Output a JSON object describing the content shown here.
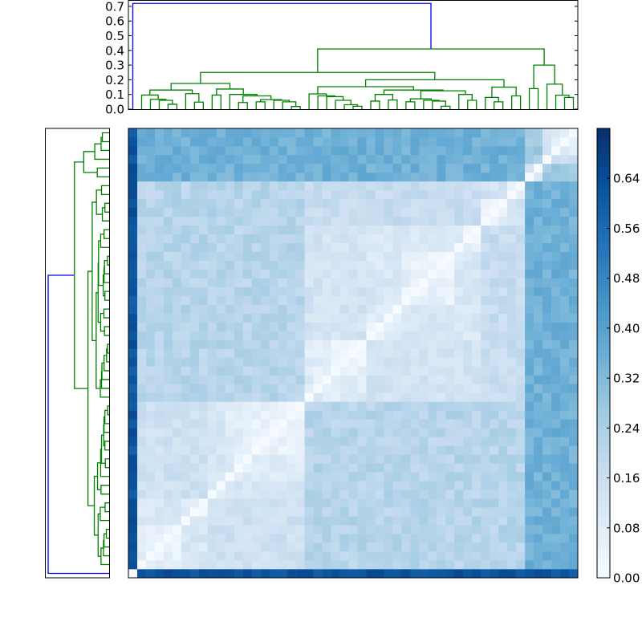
{
  "chart_data": {
    "type": "heatmap",
    "title": "",
    "layout": "clustered heatmap with column dendrogram on top, row dendrogram on left, colorbar on right",
    "n_leaves": 51,
    "leaf_order": "left-to-right for columns, bottom-to-top for rows",
    "linkage_tree": [
      0,
      [
        [
          [
            [
              [
                1,
                [
                  2,
                  [
                    3,
                    [
                      4,
                      5,
                      0.033
                    ],
                    0.06
                  ],
                  0.067
                ],
                0.096
              ],
              [
                6,
                [
                  7,
                  8,
                  0.048
                ],
                0.105
              ],
              0.13
            ],
            [
              [
                9,
                10,
                0.096
              ],
              [
                11,
                [
                  [
                    12,
                    13,
                    0.045
                  ],
                  [
                    [
                      14,
                      15,
                      0.05
                    ],
                    [
                      16,
                      [
                        17,
                        [
                          18,
                          19,
                          0.018
                        ],
                        0.05
                      ],
                      0.06
                    ],
                    0.065
                  ],
                  0.09
                ],
                0.1
              ],
              0.137
            ],
            0.175
          ],
          [
            [
              [
                20,
                [
                  21,
                  [
                    22,
                    [
                      23,
                      [
                        24,
                        [
                          25,
                          26,
                          0.02
                        ],
                        0.03
                      ],
                      0.06
                    ],
                    0.085
                  ],
                  0.09
                ],
                0.104
              ],
              [
                [
                  [
                    27,
                    28,
                    0.055
                  ],
                  [
                    29,
                    30,
                    0.062
                  ],
                  0.1
                ],
                [
                  [
                    [
                      31,
                      32,
                      0.05
                    ],
                    [
                      33,
                      [
                        34,
                        [
                          35,
                          36,
                          0.02
                        ],
                        0.055
                      ],
                      0.06
                    ],
                    0.07
                  ],
                  [
                    37,
                    [
                      38,
                      39,
                      0.06
                    ],
                    0.1
                  ],
                  0.125
                ],
                0.13
              ],
              0.153
            ],
            [
              [
                40,
                [
                  41,
                  42,
                  0.05
                ],
                0.08
              ],
              [
                43,
                44,
                0.09
              ],
              0.15
            ],
            0.2
          ],
          0.25
        ],
        [
          [
            45,
            46,
            0.14
          ],
          [
            47,
            [
              48,
              [
                49,
                50,
                0.08
              ],
              0.095
            ],
            0.17
          ],
          0.3
        ],
        0.41
      ],
      0.72
    ],
    "dendrogram_colors": {
      "root_link": "#0000ff",
      "cluster_links": "#008000"
    },
    "top_dendrogram_axis": {
      "ylim": [
        0,
        0.74
      ],
      "ticks": [
        "0.0",
        "0.1",
        "0.2",
        "0.3",
        "0.4",
        "0.5",
        "0.6",
        "0.7"
      ]
    },
    "heatmap": {
      "colormap": "Blues",
      "vmin": 0.0,
      "vmax": 0.72,
      "diagonal": 0.0,
      "typical_within_cluster": [
        0.05,
        0.2
      ],
      "leaf0_row_and_column": [
        0.55,
        0.7
      ],
      "leaves_45_50_vs_rest": [
        0.25,
        0.45
      ]
    },
    "colorbar": {
      "range": [
        0.0,
        0.72
      ],
      "ticks": [
        "0.00",
        "0.08",
        "0.16",
        "0.24",
        "0.32",
        "0.40",
        "0.48",
        "0.56",
        "0.64"
      ],
      "colors": [
        "#f7fbff",
        "#deebf7",
        "#c6dbef",
        "#9ecae1",
        "#6baed6",
        "#4292c6",
        "#2171b5",
        "#08519c",
        "#08306b"
      ]
    }
  }
}
